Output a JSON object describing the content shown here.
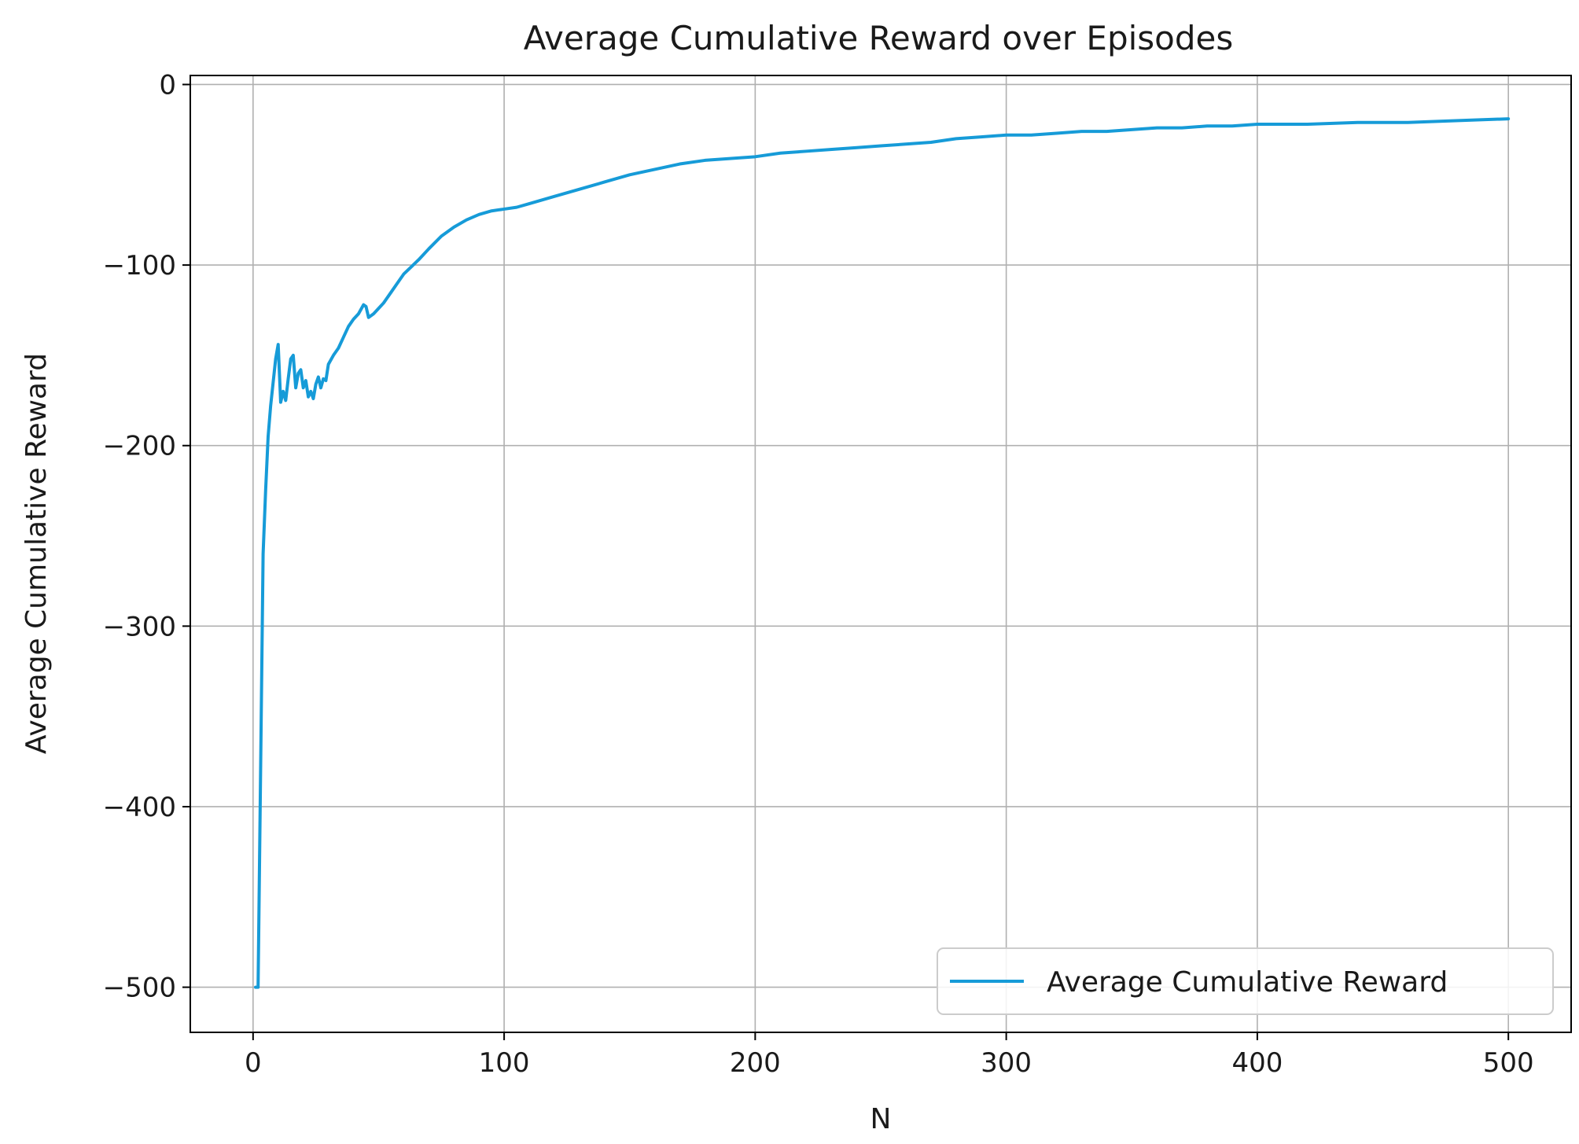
{
  "chart_data": {
    "type": "line",
    "title": "Average Cumulative Reward over Episodes",
    "xlabel": "N",
    "ylabel": "Average Cumulative Reward",
    "xlim": [
      -25,
      525
    ],
    "ylim": [
      -525,
      5
    ],
    "xticks": [
      0,
      100,
      200,
      300,
      400,
      500
    ],
    "yticks": [
      0,
      -100,
      -200,
      -300,
      -400,
      -500
    ],
    "xtick_labels": [
      "0",
      "100",
      "200",
      "300",
      "400",
      "500"
    ],
    "ytick_labels": [
      "0",
      "−100",
      "−200",
      "−300",
      "−400",
      "−500"
    ],
    "grid": true,
    "legend_position": "lower-right",
    "series": [
      {
        "name": "Average Cumulative Reward",
        "color": "#169bd8",
        "x": [
          1,
          2,
          3,
          4,
          5,
          6,
          7,
          8,
          9,
          10,
          11,
          12,
          13,
          14,
          15,
          16,
          17,
          18,
          19,
          20,
          21,
          22,
          23,
          24,
          25,
          26,
          27,
          28,
          29,
          30,
          32,
          34,
          36,
          38,
          40,
          42,
          44,
          45,
          46,
          48,
          50,
          52,
          55,
          58,
          60,
          63,
          66,
          70,
          75,
          80,
          85,
          90,
          95,
          100,
          105,
          110,
          120,
          130,
          140,
          150,
          160,
          170,
          180,
          190,
          200,
          210,
          220,
          230,
          240,
          250,
          260,
          270,
          280,
          290,
          300,
          310,
          320,
          330,
          340,
          350,
          360,
          370,
          380,
          390,
          400,
          420,
          440,
          460,
          480,
          500
        ],
        "y": [
          -500,
          -500,
          -380,
          -260,
          -225,
          -195,
          -178,
          -165,
          -152,
          -144,
          -176,
          -170,
          -175,
          -163,
          -152,
          -150,
          -168,
          -160,
          -158,
          -168,
          -164,
          -173,
          -170,
          -174,
          -166,
          -162,
          -168,
          -163,
          -164,
          -155,
          -150,
          -146,
          -140,
          -134,
          -130,
          -127,
          -122,
          -123,
          -129,
          -127,
          -124,
          -121,
          -115,
          -109,
          -105,
          -101,
          -97,
          -91,
          -84,
          -79,
          -75,
          -72,
          -70,
          -69,
          -68,
          -66,
          -62,
          -58,
          -54,
          -50,
          -47,
          -44,
          -42,
          -41,
          -40,
          -38,
          -37,
          -36,
          -35,
          -34,
          -33,
          -32,
          -30,
          -29,
          -28,
          -28,
          -27,
          -26,
          -26,
          -25,
          -24,
          -24,
          -23,
          -23,
          -22,
          -22,
          -21,
          -21,
          -20,
          -19
        ]
      }
    ]
  }
}
